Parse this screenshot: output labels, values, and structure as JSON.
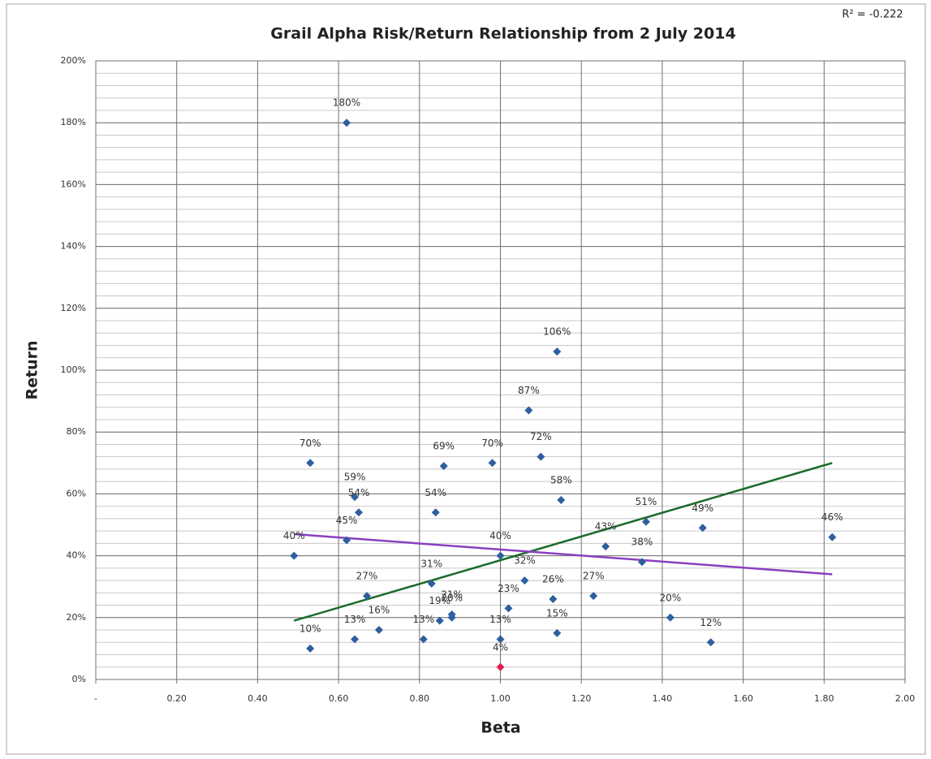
{
  "chart_data": {
    "type": "scatter",
    "title": "Grail Alpha  Risk/Return Relationship from 2 July 2014",
    "annotation": "R² = -0.222",
    "x_label": "Beta",
    "y_label": "Return",
    "xlim": [
      0,
      2
    ],
    "ylim": [
      0,
      200
    ],
    "xticks": [
      {
        "value": 0,
        "label": "-"
      },
      {
        "value": 0.2,
        "label": "0.20"
      },
      {
        "value": 0.4,
        "label": "0.40"
      },
      {
        "value": 0.6,
        "label": "0.60"
      },
      {
        "value": 0.8,
        "label": "0.80"
      },
      {
        "value": 1,
        "label": "1.00"
      },
      {
        "value": 1.2,
        "label": "1.20"
      },
      {
        "value": 1.4,
        "label": "1.40"
      },
      {
        "value": 1.6,
        "label": "1.60"
      },
      {
        "value": 1.8,
        "label": "1.80"
      },
      {
        "value": 2,
        "label": "2.00"
      }
    ],
    "yticks": [
      {
        "value": 0,
        "label": "0%"
      },
      {
        "value": 20,
        "label": "20%"
      },
      {
        "value": 40,
        "label": "40%"
      },
      {
        "value": 60,
        "label": "60%"
      },
      {
        "value": 80,
        "label": "80%"
      },
      {
        "value": 100,
        "label": "100%"
      },
      {
        "value": 120,
        "label": "120%"
      },
      {
        "value": 140,
        "label": "140%"
      },
      {
        "value": 160,
        "label": "160%"
      },
      {
        "value": 180,
        "label": "180%"
      },
      {
        "value": 200,
        "label": "200%"
      }
    ],
    "y_minor_step": 4,
    "grid": true,
    "color": "#2e5f9e",
    "highlight": {
      "index": 20,
      "color": "#e0204a"
    },
    "x": [
      0.62,
      0.53,
      0.64,
      0.65,
      0.62,
      0.49,
      0.67,
      0.53,
      0.64,
      0.7,
      0.81,
      0.85,
      0.88,
      0.88,
      0.83,
      0.84,
      0.86,
      0.98,
      1.0,
      1.0,
      1.0,
      1.02,
      1.06,
      1.07,
      1.14,
      1.1,
      1.15,
      1.13,
      1.14,
      1.23,
      1.26,
      1.35,
      1.36,
      1.42,
      1.5,
      1.52,
      1.82
    ],
    "values": [
      180,
      70,
      59,
      54,
      45,
      40,
      27,
      10,
      13,
      16,
      13,
      19,
      21,
      20,
      31,
      54,
      69,
      70,
      40,
      13,
      4,
      23,
      32,
      87,
      106,
      72,
      58,
      26,
      15,
      27,
      43,
      38,
      51,
      20,
      49,
      12,
      46
    ],
    "value_labels": [
      "180%",
      "70%",
      "59%",
      "54%",
      "45%",
      "40%",
      "27%",
      "10%",
      "13%",
      "16%",
      "13%",
      "19%",
      "21%",
      "20%",
      "31%",
      "54%",
      "69%",
      "70%",
      "40%",
      "13%",
      "4%",
      "23%",
      "32%",
      "87%",
      "106%",
      "72%",
      "58%",
      "26%",
      "15%",
      "27%",
      "43%",
      "38%",
      "51%",
      "20%",
      "49%",
      "12%",
      "46%"
    ],
    "lines": [
      {
        "color": "#1a6b2a",
        "x": [
          0.49,
          1.82
        ],
        "values": [
          19,
          70
        ]
      },
      {
        "color": "#8a3fc0",
        "x": [
          0.49,
          1.82
        ],
        "values": [
          47,
          34
        ]
      }
    ]
  }
}
